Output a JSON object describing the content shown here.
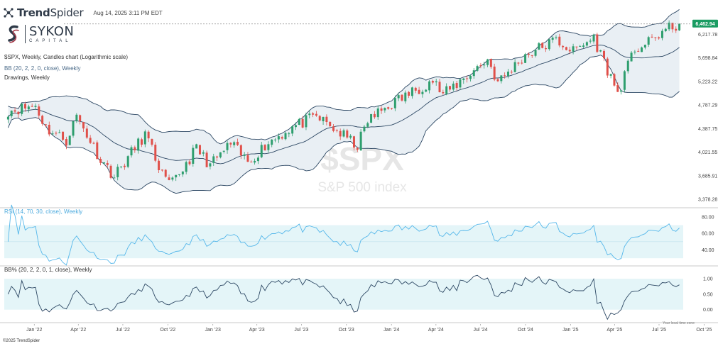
{
  "header": {
    "brand_name_bold": "Trend",
    "brand_name_thin": "Spider",
    "timestamp": "Aug 14, 2025 3:11 PM EDT",
    "logo_text_main": "SYKON",
    "logo_text_sub": "CAPITAL"
  },
  "legend": {
    "main": "$SPX, Weekly, Candles chart (Logarithmic scale)",
    "bb": "BB (20, 2, 2, 0, close), Weekly",
    "drawings": "Drawings, Weekly",
    "rsi": "RSI (14, 70, 30, close), Weekly",
    "bbpct": "BB% (20, 2, 2, 0, 1, close), Weekly"
  },
  "watermark": {
    "symbol": "$SPX",
    "name": "S&P 500 index"
  },
  "footer": {
    "copyright": "©2025 TrendSpider",
    "timezone": "Your local time zone"
  },
  "colors": {
    "up": "#2e9e6e",
    "down": "#e0504a",
    "band": "#2c4763",
    "band_fill": "#e9eff4",
    "rsi_line": "#55b7ea",
    "rsi_zone": "#e4f5f8",
    "bbp_line": "#2c4763",
    "bbp_zone": "#e4f5f8",
    "last_price_bg": "#1a9c62"
  },
  "chart_data": [
    {
      "type": "candlestick",
      "title": "$SPX",
      "scale": "log",
      "ylim": [
        3300,
        6700
      ],
      "y_ticks": [
        "6,217.78",
        "5,698.84",
        "5,223.22",
        "4,787.29",
        "4,387.75",
        "4,021.55",
        "3,685.91",
        "3,378.28"
      ],
      "last_price": "6,462.94",
      "x_ticks": [
        "Jan '22",
        "Apr '22",
        "Jul '22",
        "Oct '22",
        "Jan '23",
        "Apr '23",
        "Jul '23",
        "Oct '23",
        "Jan '24",
        "Apr '24",
        "Jul '24",
        "Oct '24",
        "Jan '25",
        "Apr '25",
        "Jul '25",
        "Oct '25"
      ],
      "x_start": "2021-11-05",
      "interval": "weekly",
      "anchors": [
        [
          "2021-11-05",
          4690
        ],
        [
          "2022-01-03",
          4780
        ],
        [
          "2022-01-24",
          4400
        ],
        [
          "2022-03-07",
          4200
        ],
        [
          "2022-03-28",
          4600
        ],
        [
          "2022-05-16",
          3920
        ],
        [
          "2022-06-13",
          3680
        ],
        [
          "2022-08-15",
          4300
        ],
        [
          "2022-09-26",
          3600
        ],
        [
          "2022-10-10",
          3580
        ],
        [
          "2022-11-28",
          4080
        ],
        [
          "2022-12-26",
          3830
        ],
        [
          "2023-02-06",
          4150
        ],
        [
          "2023-03-13",
          3880
        ],
        [
          "2023-04-24",
          4170
        ],
        [
          "2023-06-12",
          4410
        ],
        [
          "2023-07-31",
          4590
        ],
        [
          "2023-10-23",
          4120
        ],
        [
          "2023-11-13",
          4520
        ],
        [
          "2023-12-25",
          4780
        ],
        [
          "2024-03-25",
          5250
        ],
        [
          "2024-04-15",
          4970
        ],
        [
          "2024-07-15",
          5670
        ],
        [
          "2024-08-05",
          5200
        ],
        [
          "2024-09-30",
          5760
        ],
        [
          "2024-12-02",
          6090
        ],
        [
          "2025-01-06",
          5840
        ],
        [
          "2025-02-17",
          6140
        ],
        [
          "2025-03-10",
          5620
        ],
        [
          "2025-04-07",
          5000
        ],
        [
          "2025-05-12",
          5900
        ],
        [
          "2025-06-09",
          6020
        ],
        [
          "2025-07-07",
          6280
        ],
        [
          "2025-08-11",
          6462.94
        ]
      ],
      "bollinger": {
        "period": 20,
        "stddev": 2
      }
    },
    {
      "type": "line",
      "title": "RSI (14, 70, 30, close), Weekly",
      "ylim": [
        25,
        85
      ],
      "y_ticks": [
        "80.00",
        "60.00",
        "40.00"
      ],
      "zone": [
        30,
        70
      ]
    },
    {
      "type": "line",
      "title": "BB% (20, 2, 2, 0, 1, close), Weekly",
      "ylim": [
        -0.35,
        1.3
      ],
      "y_ticks": [
        "1.00",
        "0.50",
        "0.00"
      ],
      "zone": [
        0,
        1
      ]
    }
  ]
}
